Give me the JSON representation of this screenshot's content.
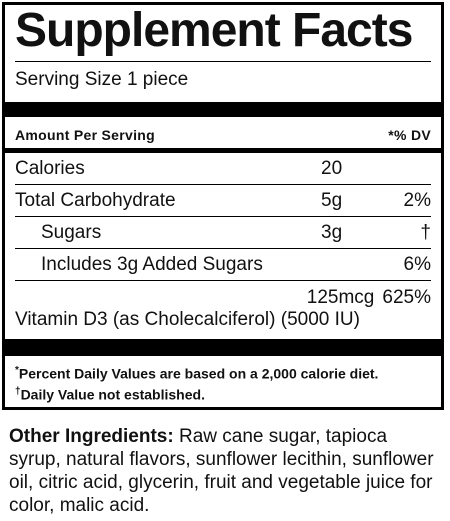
{
  "title": "Supplement Facts",
  "serving_size": "Serving Size 1 piece",
  "header": {
    "amount_per_serving": "Amount Per Serving",
    "dv": "*% DV"
  },
  "rows": [
    {
      "name": "Calories",
      "amount": "20",
      "dv": ""
    },
    {
      "name": "Total Carbohydrate",
      "amount": "5g",
      "dv": "2%"
    },
    {
      "name": "Sugars",
      "amount": "3g",
      "dv": "†"
    },
    {
      "name": "Includes 3g Added Sugars",
      "amount": "",
      "dv": "6%"
    }
  ],
  "vitamin": {
    "amount": "125mcg",
    "dv": "625%",
    "name": "Vitamin D3 (as Cholecalciferol) (5000 IU)"
  },
  "footnotes": {
    "percent": "Percent Daily Values are based on a 2,000 calorie diet.",
    "percent_marker": "*",
    "not_established": "Daily Value not established.",
    "not_established_marker": "†"
  },
  "ingredients": {
    "label": "Other Ingredients:",
    "text": "Raw cane sugar, tapioca syrup, natural flavors, sunflower lecithin, sunflower oil, citric acid, glycerin, fruit and vegetable juice for color, malic acid."
  }
}
